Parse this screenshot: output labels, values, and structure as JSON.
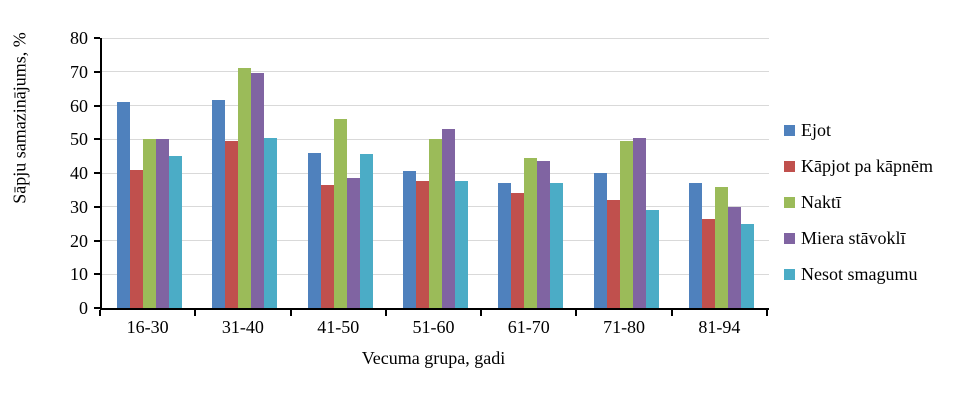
{
  "chart_data": {
    "type": "bar",
    "title": "",
    "xlabel": "Vecuma grupa, gadi",
    "ylabel": "Sāpju samazinājums, %",
    "ylim": [
      0,
      80
    ],
    "ytick_step": 10,
    "grid": true,
    "legend_position": "right",
    "categories": [
      "16-30",
      "31-40",
      "41-50",
      "51-60",
      "61-70",
      "71-80",
      "81-94"
    ],
    "series": [
      {
        "name": "Ejot",
        "color": "#4F81BD",
        "values": [
          61,
          61.5,
          46,
          40.5,
          37,
          40,
          37
        ]
      },
      {
        "name": "Kāpjot pa kāpnēm",
        "color": "#C0504D",
        "values": [
          41,
          49.5,
          36.5,
          37.5,
          34,
          32,
          26.5
        ]
      },
      {
        "name": "Naktī",
        "color": "#9BBB59",
        "values": [
          50,
          71,
          56,
          50,
          44.5,
          49.5,
          36
        ]
      },
      {
        "name": "Miera stāvoklī",
        "color": "#8064A2",
        "values": [
          50,
          69.5,
          38.5,
          53,
          43.5,
          50.5,
          30
        ]
      },
      {
        "name": "Nesot smagumu",
        "color": "#4BACC6",
        "values": [
          45,
          50.5,
          45.5,
          37.5,
          37,
          29,
          25
        ]
      }
    ],
    "colors": {
      "gridline": "#D9D9D9",
      "axis": "#000000",
      "text": "#000000",
      "background": "#FFFFFF"
    }
  }
}
